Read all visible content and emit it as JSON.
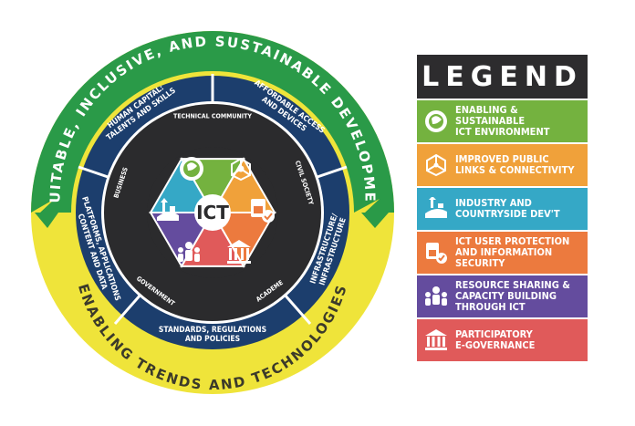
{
  "outer_ring": {
    "top_text": "EQUITABLE, INCLUSIVE, AND SUSTAINABLE DEVELOPMENT",
    "bottom_text": "ENABLING TRENDS AND TECHNOLOGIES"
  },
  "blue_ring": {
    "segments": [
      "HUMAN CAPITAL:|TALENTS AND SKILLS",
      "AFFORDABLE ACCESS|AND DEVICES",
      "INFRASTRUCTURE/|INFRASTRUCTURE",
      "STANDARDS, REGULATIONS|AND POLICIES",
      "PLATFORMS, APPLICATIONS|CONTENT AND DATA"
    ]
  },
  "inner_ring": {
    "labels": [
      "TECHNICAL COMMUNITY",
      "CIVIL SOCIETY",
      "ACADEME",
      "GOVERNMENT",
      "BUSINESS"
    ]
  },
  "center": {
    "label": "ICT"
  },
  "legend": {
    "title": "LEGEND",
    "items": [
      {
        "label": "ENABLING & SUSTAINABLE\nICT ENVIRONMENT",
        "color": "#74b23f",
        "icon": "eco-globe-icon"
      },
      {
        "label": "IMPROVED PUBLIC\nLINKS & CONNECTIVITY",
        "color": "#f0a13a",
        "icon": "network-nodes-icon"
      },
      {
        "label": "INDUSTRY AND\nCOUNTRYSIDE DEV'T",
        "color": "#35a8c6",
        "icon": "countryside-icon"
      },
      {
        "label": "ICT USER PROTECTION\nAND INFORMATION\nSECURITY",
        "color": "#ec7a3e",
        "icon": "shield-lock-icon"
      },
      {
        "label": "RESOURCE SHARING &\nCAPACITY BUILDING\nTHROUGH ICT",
        "color": "#644c9e",
        "icon": "people-group-icon"
      },
      {
        "label": "PARTICIPATORY\nE-GOVERNANCE",
        "color": "#e05a5a",
        "icon": "government-building-icon"
      }
    ]
  }
}
